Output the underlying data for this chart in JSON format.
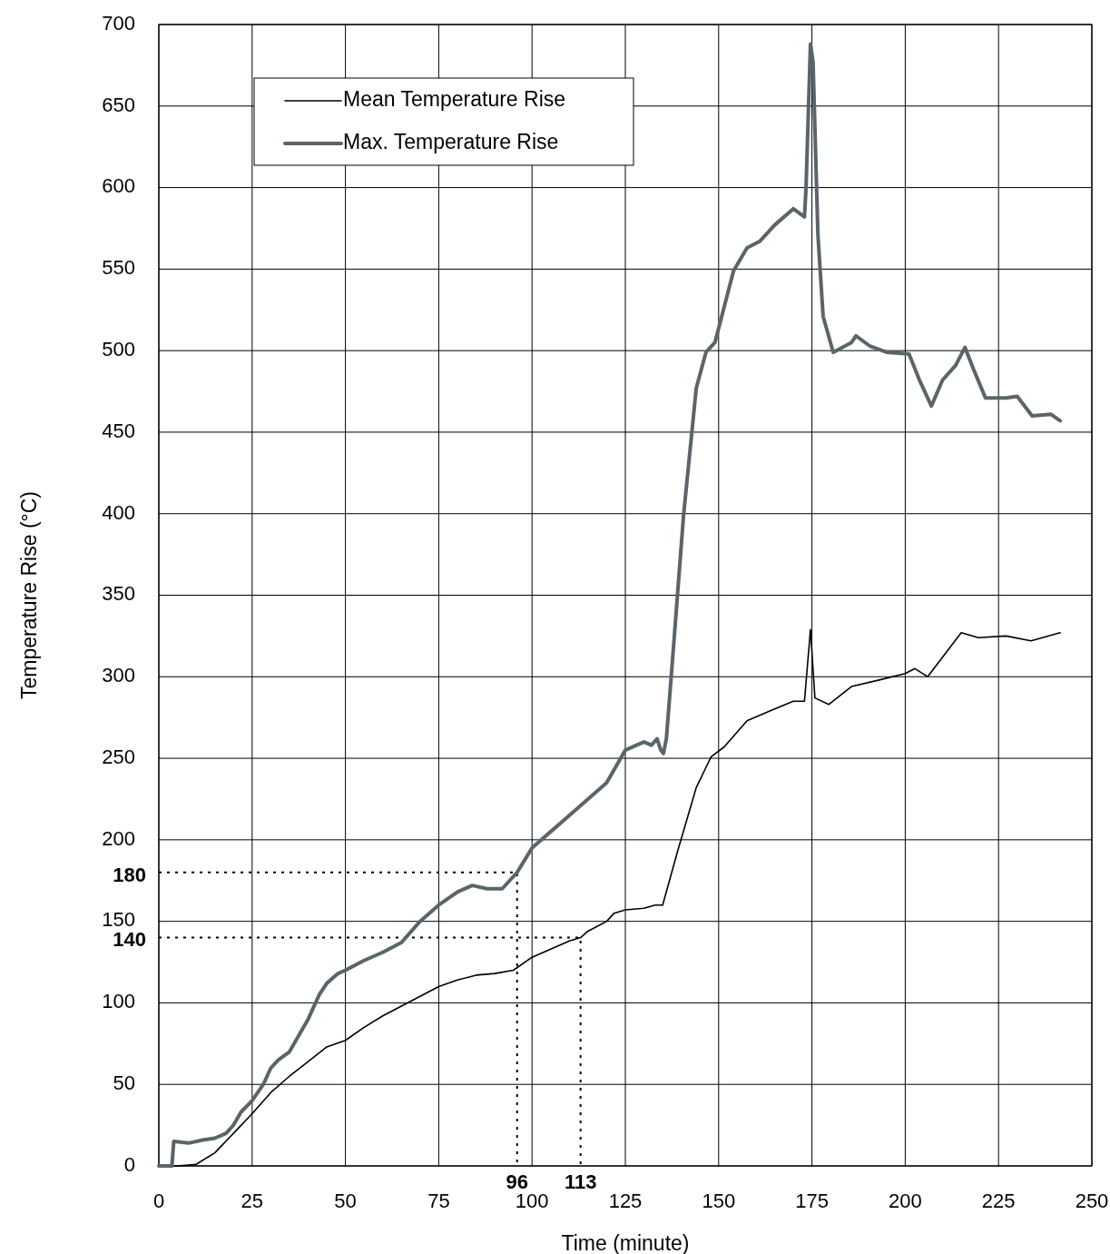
{
  "chart_data": {
    "type": "line",
    "xlabel": "Time (minute)",
    "ylabel": "Temperature Rise (°C)",
    "xlim": [
      0,
      250
    ],
    "xticks": [
      0,
      25,
      50,
      75,
      100,
      125,
      150,
      175,
      200,
      225,
      250
    ],
    "ylim": [
      0,
      700
    ],
    "yticks": [
      0,
      50,
      100,
      {
        "value": 140,
        "label": "140"
      },
      150,
      {
        "value": 180,
        "label": "180"
      },
      200,
      250,
      300,
      350,
      400,
      450,
      500,
      550,
      600,
      650,
      700
    ],
    "grid": true,
    "legend": "top left",
    "marker": "none",
    "line_style": "solid",
    "annotations": [
      {
        "text": "96",
        "x": 96,
        "y": 0
      },
      {
        "text": "113",
        "x": 113,
        "y": 0
      }
    ],
    "series": [
      {
        "color": "#000000",
        "line_style": "dotted",
        "x": [
          0,
          96,
          96
        ],
        "values": [
          180,
          180,
          0
        ]
      },
      {
        "color": "#000000",
        "line_style": "dotted",
        "x": [
          0,
          113,
          113
        ],
        "values": [
          140,
          140,
          0
        ]
      },
      {
        "name": "Mean Temperature Rise",
        "color": "#000000",
        "x": [
          0,
          5,
          10,
          15,
          20,
          25,
          30,
          35,
          40,
          45,
          50,
          55,
          60,
          65,
          70,
          75,
          80,
          85,
          90,
          95,
          100,
          105,
          110,
          113,
          115,
          120,
          122,
          125,
          130,
          133,
          135,
          139,
          144,
          148,
          151.5,
          157.6,
          163.7,
          170,
          173,
          174.6,
          175.8,
          179.5,
          185.6,
          193,
          200,
          202.6,
          206,
          210,
          215,
          219.6,
          227,
          233.7,
          241.5
        ],
        "values": [
          0,
          0,
          1,
          8,
          20,
          32,
          45,
          55,
          64,
          73,
          77,
          85,
          92,
          98,
          104,
          110,
          114,
          117,
          118,
          120,
          128,
          133,
          138,
          140,
          144,
          150,
          155,
          157,
          158,
          160,
          160,
          193,
          232,
          251,
          257,
          273,
          279,
          285,
          285,
          329,
          287,
          283,
          294,
          298,
          302,
          305,
          300,
          312,
          327,
          324,
          325,
          322,
          327
        ]
      },
      {
        "name": "Max. Temperature Rise",
        "color": "#5a6469",
        "x": [
          0,
          3.5,
          4,
          8,
          12,
          15,
          18,
          20,
          22,
          25,
          28,
          30,
          32,
          35,
          38,
          40,
          43,
          45,
          48,
          50,
          55,
          60,
          65,
          70,
          75,
          80,
          84,
          88,
          92,
          96,
          100,
          105,
          110,
          115,
          120,
          125,
          128,
          130,
          132,
          133.5,
          134.5,
          135.2,
          136,
          138,
          140.6,
          144,
          146.6,
          149,
          151.5,
          154,
          157.6,
          161,
          165,
          170,
          173,
          173.4,
          174.6,
          175.3,
          176.6,
          178,
          180.7,
          185.6,
          186.8,
          190.4,
          195,
          201,
          203.8,
          207,
          210,
          213.5,
          216,
          218.4,
          221.5,
          227,
          230,
          234,
          239,
          241.5
        ],
        "values": [
          0,
          0,
          15,
          14,
          16,
          17,
          20,
          25,
          33,
          40,
          50,
          60,
          65,
          70,
          82,
          90,
          105,
          112,
          118,
          120,
          126,
          131,
          137,
          150,
          160,
          168,
          172,
          170,
          170,
          180,
          195,
          205,
          215,
          225,
          235,
          255,
          258,
          260,
          258,
          262,
          255,
          253,
          262,
          321,
          399,
          477,
          499,
          505,
          527,
          549,
          563,
          567,
          577,
          587,
          582,
          599,
          688,
          677,
          571,
          521,
          499,
          505,
          509,
          503,
          499,
          498,
          482,
          466,
          482,
          491,
          502,
          488,
          471,
          471,
          472,
          460,
          461,
          457
        ]
      }
    ]
  }
}
